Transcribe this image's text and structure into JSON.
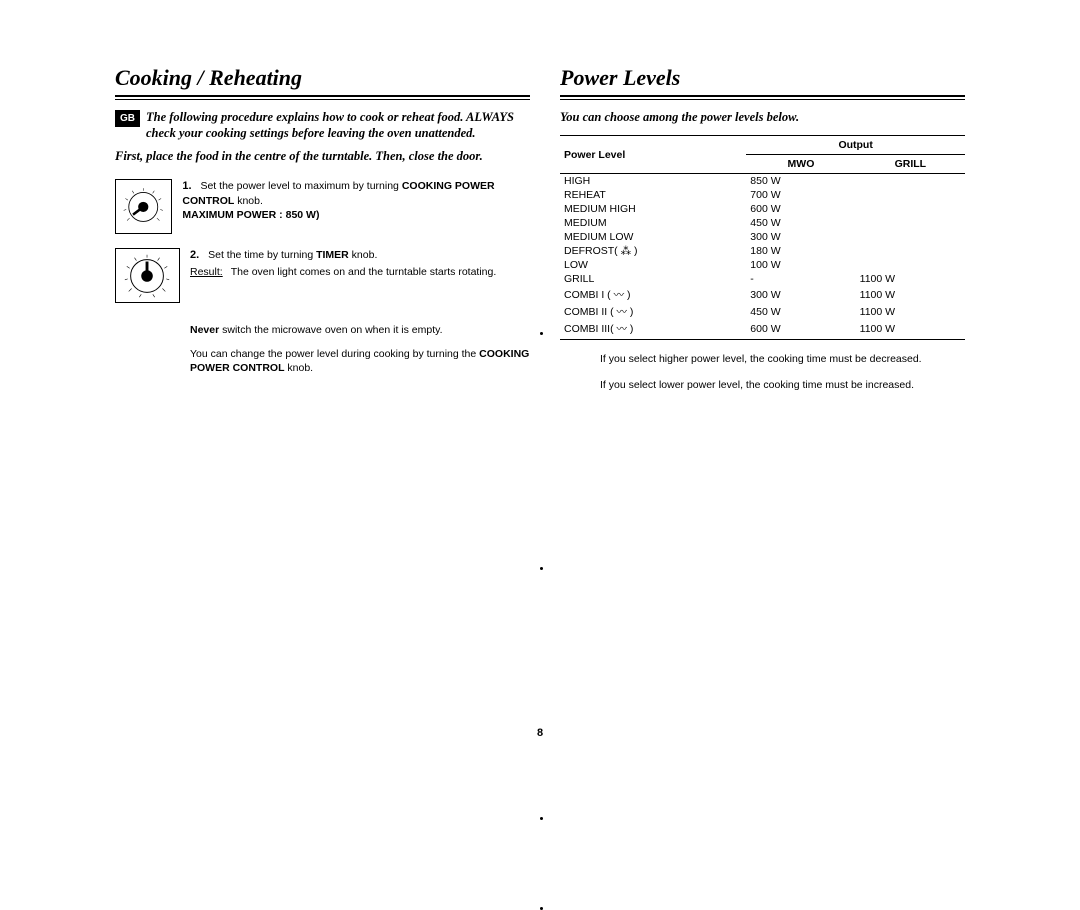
{
  "pageNumber": "8",
  "dividerDotY": [
    240,
    490,
    580
  ],
  "left": {
    "title": "Cooking / Reheating",
    "badge": "GB",
    "intro": "The following procedure explains how to cook or reheat food. ALWAYS check your cooking settings before leaving the oven unattended.",
    "subintro": "First, place the food in the centre of the turntable. Then, close the door.",
    "steps": [
      {
        "num": "1.",
        "body_pre": "Set the power level to maximum by turning ",
        "body_bold1": "COOKING POWER CONTROL",
        "body_post": " knob.",
        "extra_bold": "MAXIMUM POWER : 850 W)",
        "result_label": "",
        "result_text": ""
      },
      {
        "num": "2.",
        "body_pre": "Set the time by turning ",
        "body_bold1": "TIMER",
        "body_post": " knob.",
        "result_label": "Result:",
        "result_text": "The oven light comes on and the turntable starts rotating."
      }
    ],
    "note1_bold": "Never",
    "note1_rest": " switch the microwave oven on when it is empty.",
    "note2_pre": "You can change the power level during cooking by turning the ",
    "note2_bold": "COOKING POWER CONTROL",
    "note2_post": " knob."
  },
  "right": {
    "title": "Power Levels",
    "intro": "You can choose among the power levels below.",
    "table": {
      "headers": {
        "h1": "Power Level",
        "h2": "Output",
        "h2a": "MWO",
        "h2b": "GRILL"
      },
      "rows": [
        {
          "level": "HIGH",
          "mwo": "850 W",
          "grill": ""
        },
        {
          "level": "REHEAT",
          "mwo": "700 W",
          "grill": ""
        },
        {
          "level": "MEDIUM HIGH",
          "mwo": "600 W",
          "grill": ""
        },
        {
          "level": "MEDIUM",
          "mwo": "450 W",
          "grill": ""
        },
        {
          "level": "MEDIUM LOW",
          "mwo": "300 W",
          "grill": ""
        },
        {
          "level": "DEFROST( ⁂ )",
          "mwo": "180 W",
          "grill": ""
        },
        {
          "level": "LOW",
          "mwo": "100 W",
          "grill": ""
        },
        {
          "level": "GRILL",
          "mwo": "-",
          "grill": "1100 W"
        },
        {
          "level": "COMBI I  ( 〰 )",
          "mwo": "300 W",
          "grill": "1100 W"
        },
        {
          "level": "COMBI II ( 〰 )",
          "mwo": "450 W",
          "grill": "1100 W"
        },
        {
          "level": "COMBI III( 〰 )",
          "mwo": "600 W",
          "grill": "1100 W"
        }
      ]
    },
    "note1": "If you select higher power level, the cooking time must be decreased.",
    "note2": "If you select lower power level, the cooking time must be increased."
  },
  "style": {
    "titleFontSize": 22,
    "bodyFontSize": 10.5,
    "introFontSize": 12.5,
    "black": "#000000",
    "white": "#ffffff"
  }
}
